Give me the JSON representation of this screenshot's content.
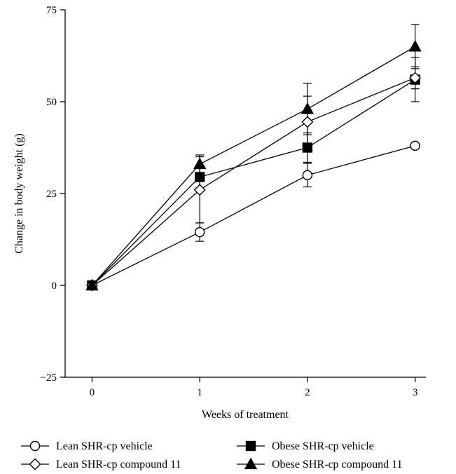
{
  "chart_data": {
    "type": "line",
    "title": "",
    "xlabel": "Weeks of treatment",
    "ylabel": "Change in body weight (g)",
    "x": [
      0,
      1,
      2,
      3
    ],
    "xticks": [
      "0",
      "1",
      "2",
      "3"
    ],
    "xlim": [
      -0.25,
      3.1
    ],
    "yticks": [
      "75",
      "50",
      "25",
      "0",
      "−25"
    ],
    "ytick_values": [
      75,
      50,
      25,
      0,
      -25
    ],
    "ylim": [
      -25,
      75
    ],
    "grid": false,
    "legend_position": "bottom",
    "series": [
      {
        "name": "Lean SHR-cp vehicle",
        "marker": "circle-open",
        "values": [
          0,
          14.5,
          30,
          38
        ],
        "errors": [
          0,
          2.5,
          3.2,
          0
        ]
      },
      {
        "name": "Obese SHR-cp vehicle",
        "marker": "square-filled",
        "values": [
          0,
          29.5,
          37.5,
          56
        ],
        "errors": [
          0,
          3,
          4,
          6
        ]
      },
      {
        "name": "Lean SHR-cp compound 11",
        "marker": "diamond-open",
        "values": [
          0,
          26,
          44.5,
          56.5
        ],
        "errors": [
          0,
          9,
          7,
          3
        ]
      },
      {
        "name": "Obese SHR-cp compound 11",
        "marker": "triangle-filled",
        "values": [
          0,
          33,
          48,
          65
        ],
        "errors": [
          0,
          2.5,
          7,
          6
        ]
      }
    ]
  }
}
